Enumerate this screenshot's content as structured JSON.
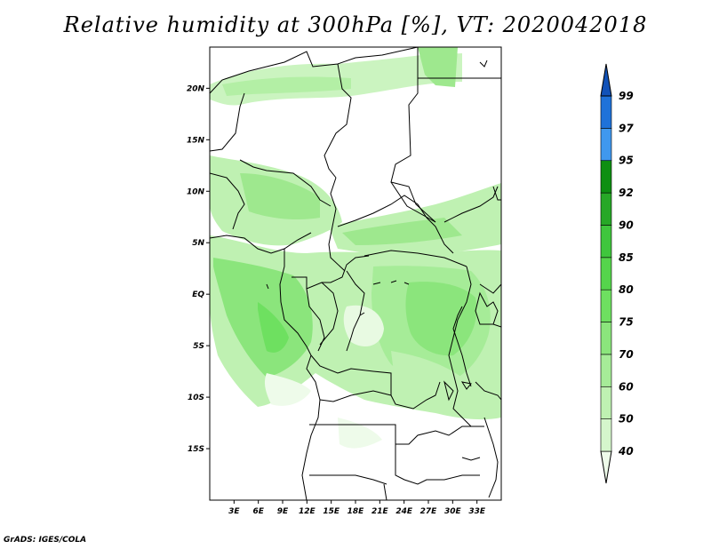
{
  "title": "Relative humidity at 300hPa [%], VT: 2020042018",
  "footer": "GrADS: IGES/COLA",
  "map": {
    "lon_range": [
      0,
      36
    ],
    "lat_range": [
      -20,
      24
    ],
    "lat_ticks": [
      "20N",
      "15N",
      "10N",
      "5N",
      "EQ",
      "5S",
      "10S",
      "15S"
    ],
    "lon_ticks": [
      "3E",
      "6E",
      "9E",
      "12E",
      "15E",
      "18E",
      "21E",
      "24E",
      "27E",
      "30E",
      "33E"
    ]
  },
  "colorbar": {
    "levels": [
      "40",
      "50",
      "60",
      "70",
      "75",
      "80",
      "85",
      "90",
      "92",
      "95",
      "97",
      "99"
    ],
    "colors": [
      "#eefbea",
      "#d5f6cc",
      "#bff1b2",
      "#a6ec98",
      "#8be57c",
      "#6ee060",
      "#55d54c",
      "#3fc63d",
      "#27a827",
      "#0e8f12",
      "#3f98ee",
      "#1f72d9",
      "#1252b8"
    ]
  }
}
